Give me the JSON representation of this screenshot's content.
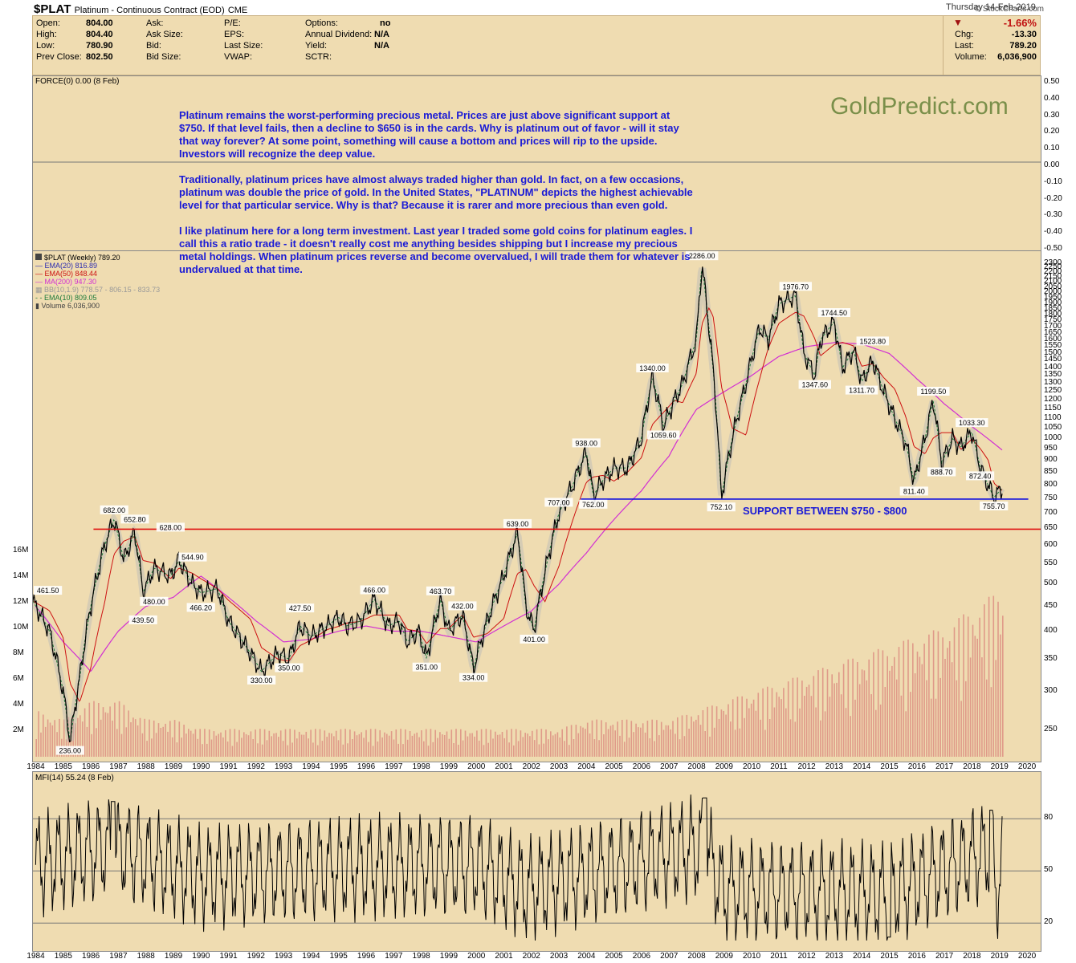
{
  "header": {
    "symbol": "$PLAT",
    "description": "Platinum - Continuous Contract (EOD)",
    "exchange": "CME",
    "source": "© StockCharts.com"
  },
  "quote": {
    "open_label": "Open:",
    "open": "804.00",
    "high_label": "High:",
    "high": "804.40",
    "low_label": "Low:",
    "low": "780.90",
    "prev_label": "Prev Close:",
    "prev": "802.50",
    "ask_label": "Ask:",
    "ask_size_label": "Ask Size:",
    "bid_label": "Bid:",
    "bid_size_label": "Bid Size:",
    "pe_label": "P/E:",
    "eps_label": "EPS:",
    "last_size_label": "Last Size:",
    "vwap_label": "VWAP:",
    "options_label": "Options:",
    "options": "no",
    "dividend_label": "Annual Dividend:",
    "dividend": "N/A",
    "yield_label": "Yield:",
    "yield": "N/A",
    "sctr_label": "SCTR:"
  },
  "summary": {
    "date": "Thursday  14-Feb-2019",
    "pct": "-1.66%",
    "chg_label": "Chg:",
    "chg": "-13.30",
    "last_label": "Last:",
    "last": "789.20",
    "volume_label": "Volume:",
    "volume": "6,036,900"
  },
  "colors": {
    "panel_bg": "#efdcb1",
    "price": "#000000",
    "ema20": "#2b2bb0",
    "ema50": "#cc1111",
    "ma200": "#d22fd2",
    "bb": "#b8b8b8",
    "ema10": "#1d7a3a",
    "volume": "#d9847c",
    "support_line": "#1010e0",
    "resistance_line": "#e01010",
    "annotation": "#1a1ad6"
  },
  "force_panel": {
    "label": "FORCE(0) 0.00 (8 Feb)",
    "ticks": [
      "0.50",
      "0.40",
      "0.30",
      "0.20",
      "0.10",
      "0.00",
      "-0.10",
      "-0.20",
      "-0.30",
      "-0.40",
      "-0.50"
    ]
  },
  "annotation": {
    "p1": "Platinum remains the worst-performing precious metal. Prices are just above significant support at $750. If that level fails, then a decline to $650 is in the cards. Why is platinum out of favor - will it stay that way forever? At some point, something will cause a bottom and prices will rip to the upside. Investors will recognize the deep value.",
    "p2": "Traditionally, platinum prices have almost always traded higher than gold. In fact, on a few occasions, platinum was double the price of gold. In the United States, \"PLATINUM\" depicts the highest achievable level for that particular service. Why is that? Because it is rarer and more precious than even gold.",
    "p3": "I like platinum here for a long term investment. Last year I traded some gold coins for platinum eagles. I call this a ratio trade - it doesn't really cost me anything besides shipping but I increase my precious metal holdings. When platinum prices reverse and become overvalued, I will trade them for whatever is undervalued at that time.",
    "watermark": "GoldPredict.com",
    "support": "SUPPORT BETWEEN $750 - $800"
  },
  "legend": {
    "title": "$PLAT (Weekly) 789.20",
    "ema20": "EMA(20) 816.89",
    "ema50": "EMA(50) 848.44",
    "ma200": "MA(200) 947.30",
    "bb": "BB(10,1.9) 778.57 - 806.15 - 833.73",
    "ema10": "EMA(10) 809.05",
    "volume": "Volume 6,036,900"
  },
  "price_axis": [
    "2300",
    "2250",
    "2200",
    "2150",
    "2100",
    "2050",
    "2000",
    "1950",
    "1900",
    "1850",
    "1800",
    "1750",
    "1700",
    "1650",
    "1600",
    "1550",
    "1500",
    "1450",
    "1400",
    "1350",
    "1300",
    "1250",
    "1200",
    "1150",
    "1100",
    "1050",
    "1000",
    "950",
    "900",
    "850",
    "800",
    "750",
    "700",
    "650",
    "600",
    "550",
    "500",
    "450",
    "400",
    "350",
    "300",
    "250"
  ],
  "volume_axis": [
    "16M",
    "14M",
    "12M",
    "10M",
    "8M",
    "6M",
    "4M",
    "2M"
  ],
  "years": [
    "1984",
    "1985",
    "1986",
    "1987",
    "1988",
    "1989",
    "1990",
    "1991",
    "1992",
    "1993",
    "1994",
    "1995",
    "1996",
    "1997",
    "1998",
    "1999",
    "2000",
    "2001",
    "2002",
    "2003",
    "2004",
    "2005",
    "2006",
    "2007",
    "2008",
    "2009",
    "2010",
    "2011",
    "2012",
    "2013",
    "2014",
    "2015",
    "2016",
    "2017",
    "2018",
    "2019",
    "2020"
  ],
  "mfi_panel": {
    "label": "MFI(14) 55.24 (8 Feb)",
    "ticks": [
      "80",
      "50",
      "20"
    ]
  },
  "chart_data": {
    "type": "line",
    "title": "$PLAT Platinum - Continuous Contract (EOD)",
    "ylabel": "",
    "yscale": "log",
    "ylim": [
      220,
      2350
    ],
    "xlim": [
      1983.9,
      2020.5
    ],
    "series": [
      {
        "name": "$PLAT (Weekly)",
        "x": [
          1983.9,
          1984.5,
          1985.0,
          1985.25,
          1985.6,
          1986.0,
          1986.5,
          1986.85,
          1987.2,
          1987.6,
          1987.9,
          1988.3,
          1988.9,
          1989.2,
          1989.7,
          1990.0,
          1990.6,
          1991.0,
          1991.8,
          1992.2,
          1992.8,
          1993.2,
          1993.6,
          1994.0,
          1994.6,
          1995.0,
          1995.3,
          1995.8,
          1996.3,
          1996.8,
          1997.2,
          1997.5,
          1997.9,
          1998.2,
          1998.7,
          1999.0,
          1999.5,
          1999.9,
          2000.4,
          2001.0,
          2001.5,
          2001.8,
          2002.1,
          2002.5,
          2003.0,
          2003.5,
          2004.0,
          2004.25,
          2004.6,
          2005.0,
          2005.5,
          2006.0,
          2006.4,
          2006.8,
          2007.2,
          2007.5,
          2008.0,
          2008.2,
          2008.45,
          2008.6,
          2008.9,
          2009.3,
          2009.8,
          2010.3,
          2010.6,
          2011.0,
          2011.6,
          2011.9,
          2012.3,
          2012.5,
          2013.0,
          2013.3,
          2013.7,
          2014.0,
          2014.4,
          2014.8,
          2015.2,
          2015.6,
          2015.9,
          2016.3,
          2016.6,
          2016.9,
          2017.3,
          2017.6,
          2018.0,
          2018.3,
          2018.6,
          2018.8,
          2019.1
        ],
        "values": [
          461.5,
          400,
          300,
          236,
          320,
          450,
          600,
          682,
          560,
          640,
          480,
          540,
          520,
          560,
          500,
          480,
          490,
          420,
          360,
          330,
          360,
          350,
          410,
          390,
          410,
          427.5,
          410,
          420,
          466,
          410,
          420,
          380,
          400,
          351,
          463.7,
          400,
          432,
          334,
          420,
          520,
          639,
          450,
          401,
          530,
          700,
          800,
          938,
          762,
          820,
          870,
          870,
          1000,
          1340,
          1059.6,
          1200,
          1300,
          1600,
          2286,
          1700,
          1400,
          752.1,
          1000,
          1300,
          1700,
          1600,
          1900,
          1976.7,
          1500,
          1347.6,
          1600,
          1744.5,
          1400,
          1523.8,
          1311.7,
          1450,
          1250,
          1100,
          980,
          811.4,
          1000,
          1199.5,
          888.7,
          1000,
          960,
          1033.3,
          872.4,
          800,
          755.7,
          789.2
        ]
      },
      {
        "name": "MA(200)",
        "x": [
          1984.0,
          1985.0,
          1986.0,
          1987.0,
          1988.0,
          1989.0,
          1990.0,
          1991.0,
          1992.0,
          1993.0,
          1994.0,
          1995.0,
          1996.0,
          1997.0,
          1998.0,
          1999.0,
          2000.0,
          2001.0,
          2002.0,
          2003.0,
          2004.0,
          2005.0,
          2006.0,
          2007.0,
          2008.0,
          2009.0,
          2010.0,
          2011.0,
          2012.0,
          2013.0,
          2014.0,
          2015.0,
          2016.0,
          2017.0,
          2018.0,
          2019.1
        ],
        "values": [
          450,
          380,
          330,
          400,
          450,
          470,
          520,
          470,
          420,
          380,
          385,
          400,
          410,
          400,
          400,
          390,
          380,
          410,
          440,
          500,
          580,
          680,
          780,
          920,
          1150,
          1250,
          1350,
          1480,
          1550,
          1580,
          1570,
          1500,
          1330,
          1180,
          1060,
          947.3
        ]
      }
    ],
    "price_labels": [
      "461.50",
      "236.00",
      "682.00",
      "652.80",
      "628.00",
      "480.00",
      "439.50",
      "544.90",
      "466.20",
      "330.00",
      "427.50",
      "350.00",
      "466.00",
      "351.00",
      "463.70",
      "432.00",
      "334.00",
      "639.00",
      "401.00",
      "707.00",
      "938.00",
      "762.00",
      "1340.00",
      "1059.60",
      "2286.00",
      "752.10",
      "1976.70",
      "1347.60",
      "1744.50",
      "1311.70",
      "1523.80",
      "811.40",
      "1199.50",
      "888.70",
      "1033.30",
      "872.40",
      "755.70"
    ],
    "support_level": 750,
    "resistance_level": 650,
    "volume_estimate_millions": [
      2.5,
      2,
      3,
      3,
      2,
      2,
      1.5,
      1.5,
      1.5,
      1.5,
      1.5,
      1.5,
      1.5,
      1.5,
      1.5,
      1.5,
      1.5,
      1.5,
      1.5,
      1.5,
      2,
      2,
      2,
      2,
      2.5,
      3,
      3.5,
      4,
      4.5,
      5,
      5.5,
      6,
      6.5,
      7,
      8,
      9
    ],
    "mfi": {
      "x": [
        1984,
        1986.8,
        1990,
        1995,
        2000,
        2001.8,
        2008.3,
        2008.9,
        2015,
        2018.7,
        2018.9,
        2019.1
      ],
      "values": [
        60,
        90,
        40,
        55,
        60,
        20,
        92,
        20,
        12,
        85,
        20,
        55
      ]
    },
    "grid": false
  }
}
